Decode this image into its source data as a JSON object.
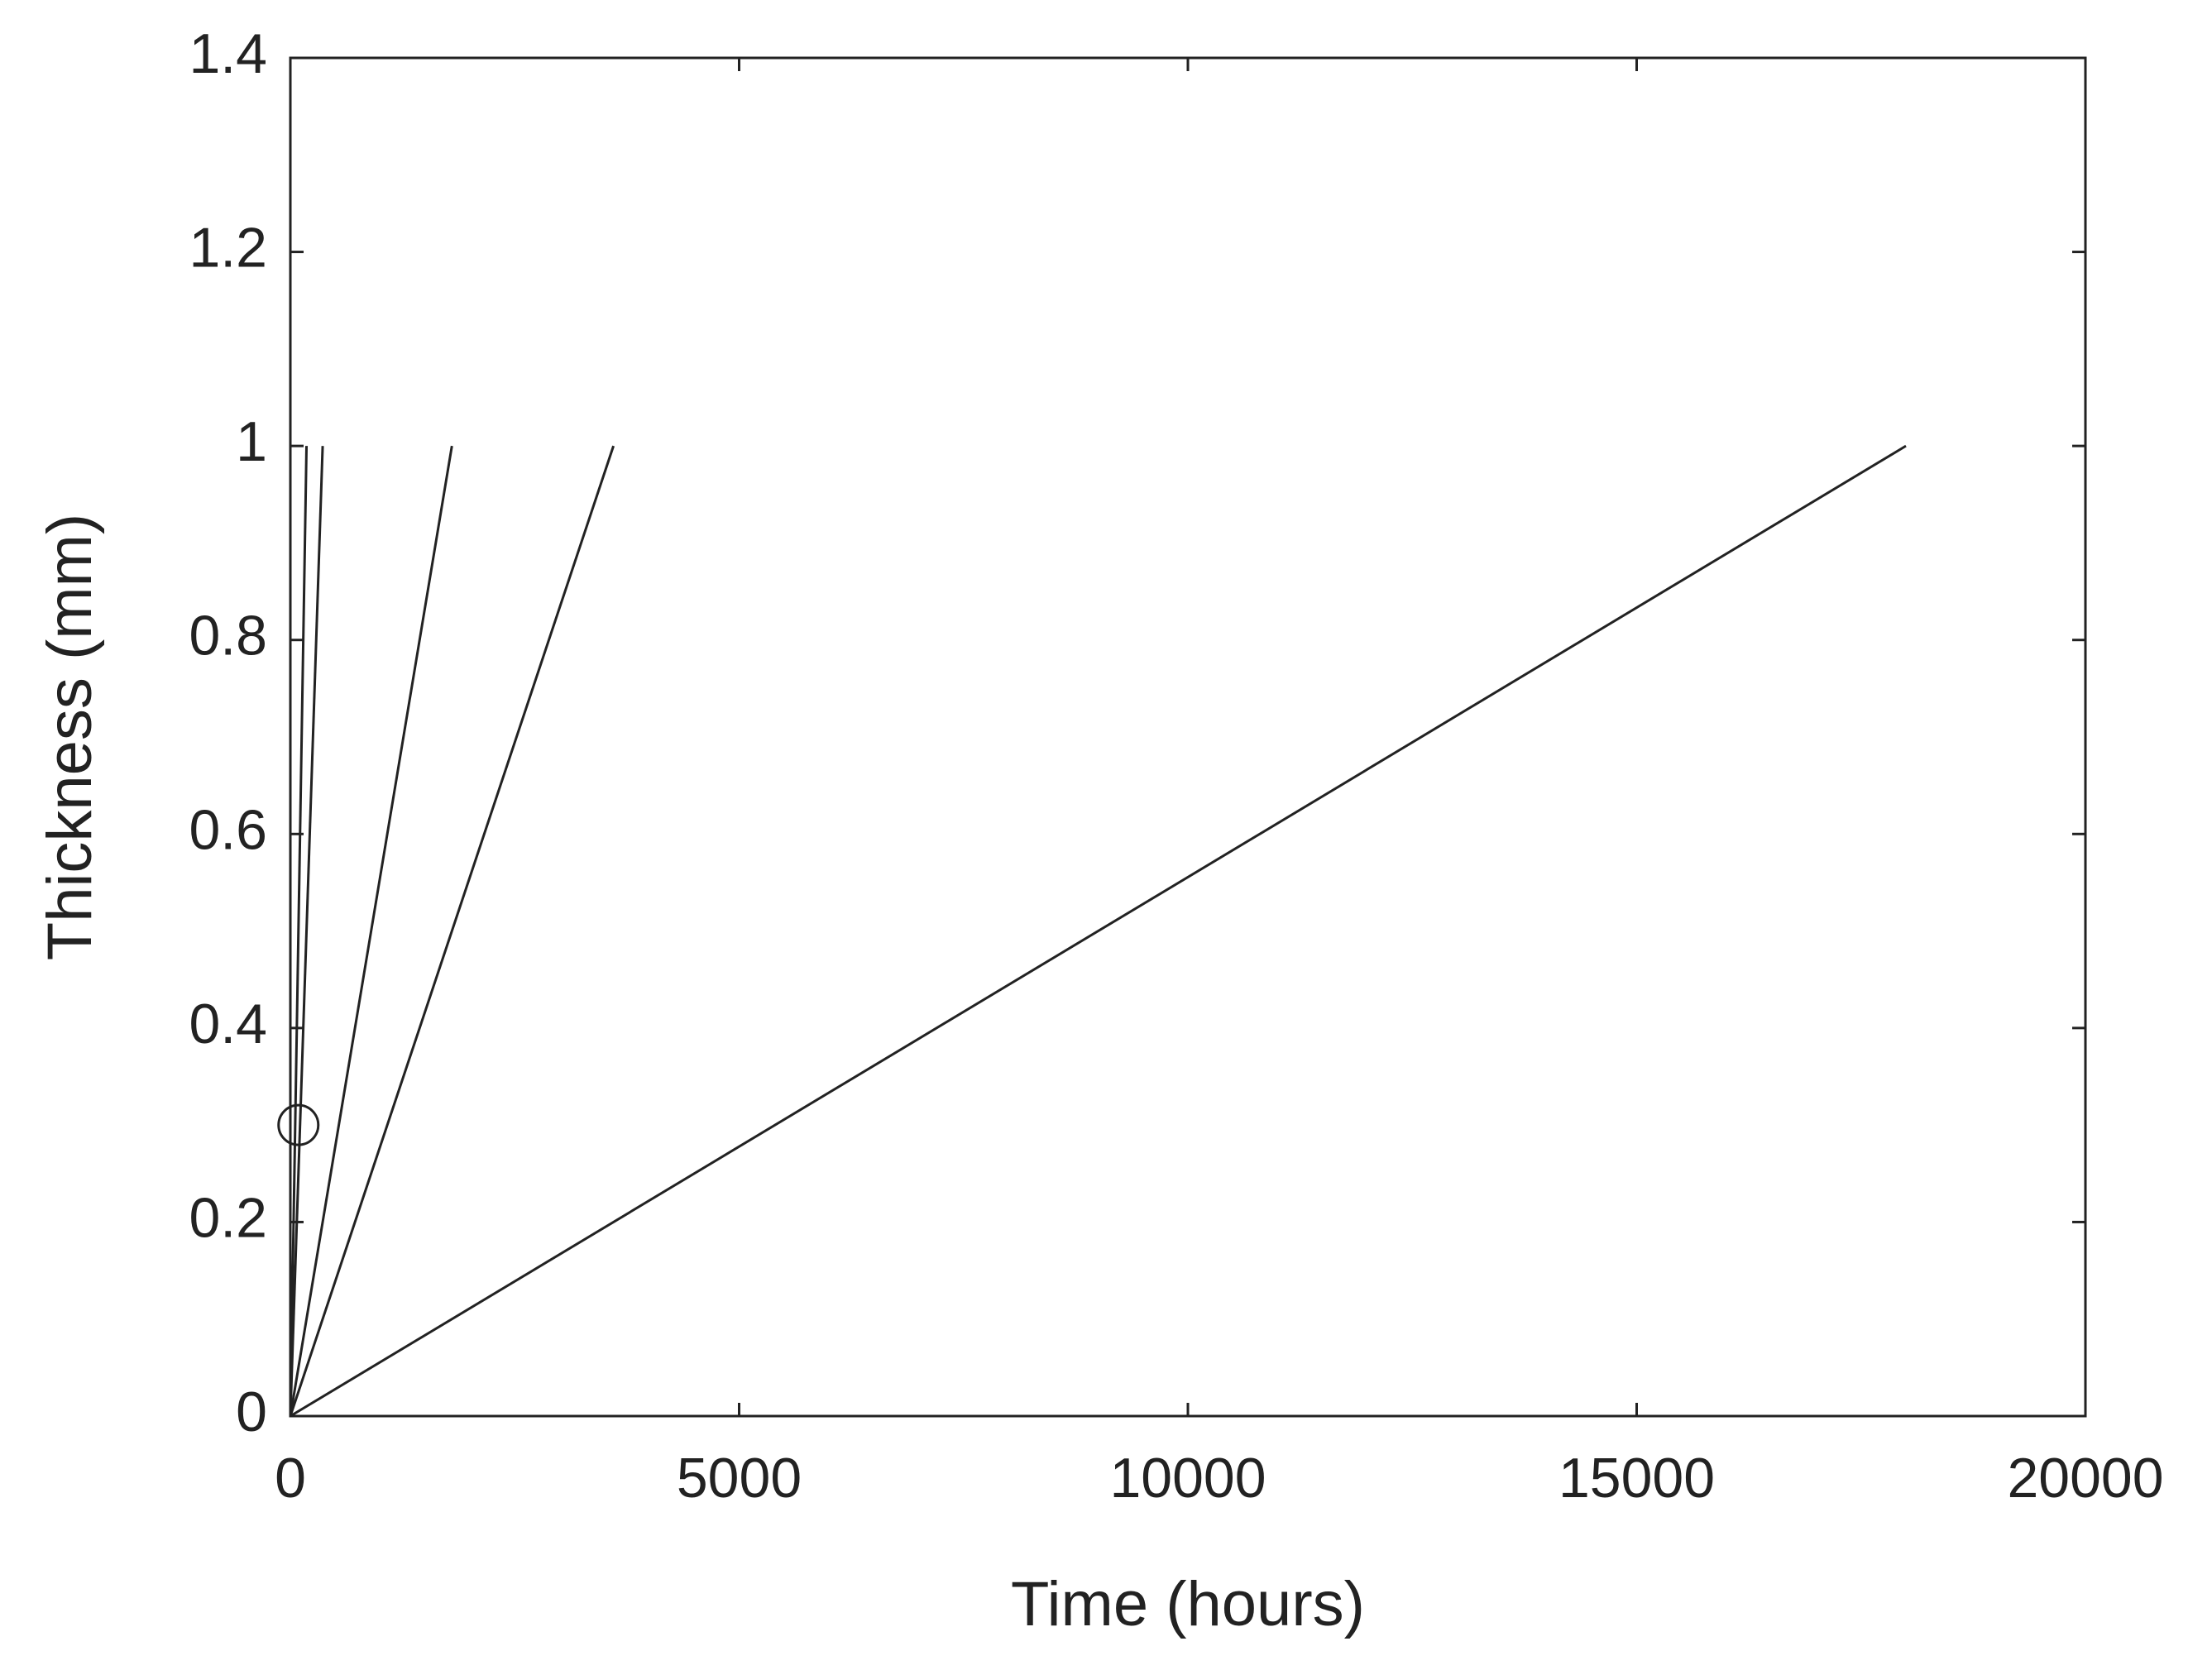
{
  "chart_data": {
    "type": "line",
    "x_label": "Time (hours)",
    "y_label": "Thickness (mm)",
    "series": [
      {
        "color": "#222222",
        "x": [
          0,
          18000
        ],
        "values": [
          0,
          1
        ]
      },
      {
        "color": "#222222",
        "x": [
          0,
          3600
        ],
        "values": [
          0,
          1
        ]
      },
      {
        "color": "#222222",
        "x": [
          0,
          1800
        ],
        "values": [
          0,
          1
        ]
      },
      {
        "color": "#222222",
        "x": [
          0,
          360
        ],
        "values": [
          0,
          1
        ]
      },
      {
        "color": "#222222",
        "x": [
          0,
          180
        ],
        "values": [
          0,
          1
        ]
      }
    ],
    "marker": {
      "x": 90,
      "y": 0.3
    },
    "xlim": [
      0,
      20000
    ],
    "xticks": [
      0,
      5000,
      10000,
      15000,
      20000
    ],
    "ylim": [
      0,
      1.4
    ],
    "yticks": [
      0,
      0.2,
      0.4,
      0.6,
      0.8,
      1,
      1.2,
      1.4
    ],
    "grid": false
  }
}
